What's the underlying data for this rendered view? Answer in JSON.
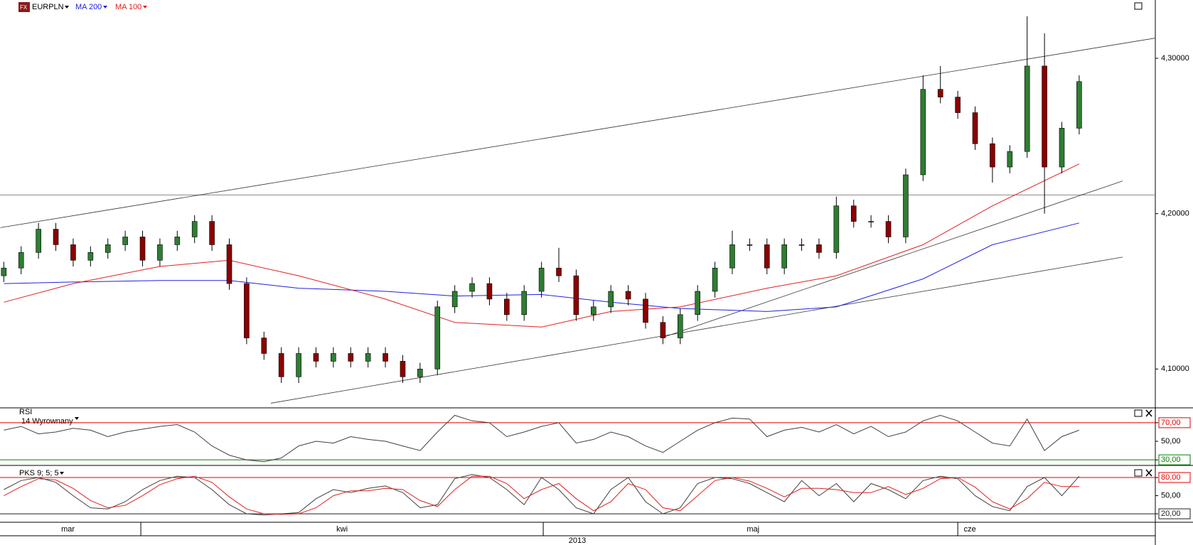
{
  "chart_data": [
    {
      "type": "candlestick",
      "title": "EURPLN",
      "up_color": "#2e7d32",
      "down_color": "#8b0000",
      "open": [
        4.16,
        4.165,
        4.175,
        4.19,
        4.18,
        4.17,
        4.175,
        4.18,
        4.185,
        4.17,
        4.18,
        4.185,
        4.195,
        4.18,
        4.155,
        4.12,
        4.11,
        4.095,
        4.11,
        4.105,
        4.11,
        4.105,
        4.11,
        4.105,
        4.095,
        4.1,
        4.14,
        4.15,
        4.155,
        4.145,
        4.135,
        4.15,
        4.165,
        4.16,
        4.135,
        4.14,
        4.15,
        4.145,
        4.13,
        4.12,
        4.135,
        4.15,
        4.165,
        4.18,
        4.18,
        4.165,
        4.18,
        4.18,
        4.175,
        4.205,
        4.195,
        4.195,
        4.185,
        4.225,
        4.28,
        4.275,
        4.265,
        4.245,
        4.23,
        4.24,
        4.295,
        4.23,
        4.255
      ],
      "high": [
        4.169,
        4.179,
        4.194,
        4.194,
        4.184,
        4.179,
        4.184,
        4.189,
        4.189,
        4.184,
        4.189,
        4.199,
        4.199,
        4.184,
        4.159,
        4.124,
        4.114,
        4.114,
        4.114,
        4.114,
        4.114,
        4.114,
        4.114,
        4.109,
        4.104,
        4.144,
        4.154,
        4.159,
        4.159,
        4.149,
        4.154,
        4.169,
        4.178,
        4.164,
        4.144,
        4.154,
        4.154,
        4.149,
        4.134,
        4.139,
        4.154,
        4.169,
        4.189,
        4.184,
        4.184,
        4.184,
        4.184,
        4.184,
        4.211,
        4.209,
        4.199,
        4.199,
        4.229,
        4.289,
        4.295,
        4.279,
        4.269,
        4.249,
        4.244,
        4.327,
        4.316,
        4.259,
        4.289
      ],
      "low": [
        4.156,
        4.161,
        4.171,
        4.176,
        4.166,
        4.166,
        4.171,
        4.176,
        4.166,
        4.166,
        4.176,
        4.181,
        4.176,
        4.151,
        4.116,
        4.106,
        4.091,
        4.091,
        4.101,
        4.101,
        4.101,
        4.101,
        4.101,
        4.091,
        4.091,
        4.096,
        4.136,
        4.146,
        4.141,
        4.131,
        4.131,
        4.146,
        4.156,
        4.131,
        4.131,
        4.136,
        4.141,
        4.126,
        4.116,
        4.116,
        4.131,
        4.146,
        4.161,
        4.176,
        4.161,
        4.161,
        4.176,
        4.171,
        4.171,
        4.191,
        4.191,
        4.181,
        4.181,
        4.221,
        4.271,
        4.261,
        4.241,
        4.22,
        4.226,
        4.236,
        4.2,
        4.226,
        4.251
      ],
      "close": [
        4.165,
        4.175,
        4.19,
        4.18,
        4.17,
        4.175,
        4.18,
        4.185,
        4.17,
        4.18,
        4.185,
        4.195,
        4.18,
        4.155,
        4.12,
        4.11,
        4.095,
        4.11,
        4.105,
        4.11,
        4.105,
        4.11,
        4.105,
        4.095,
        4.1,
        4.14,
        4.15,
        4.155,
        4.145,
        4.135,
        4.15,
        4.165,
        4.16,
        4.135,
        4.14,
        4.15,
        4.145,
        4.13,
        4.12,
        4.135,
        4.15,
        4.165,
        4.18,
        4.18,
        4.165,
        4.18,
        4.18,
        4.175,
        4.205,
        4.195,
        4.195,
        4.185,
        4.225,
        4.28,
        4.275,
        4.265,
        4.245,
        4.23,
        4.24,
        4.295,
        4.23,
        4.255,
        4.285
      ],
      "series": [
        {
          "name": "MA 200",
          "color": "#2020e0",
          "x": [
            0,
            4,
            9,
            13,
            17,
            22,
            26,
            31,
            35,
            39,
            44,
            48,
            53,
            57,
            62
          ],
          "values": [
            4.155,
            4.156,
            4.157,
            4.157,
            4.152,
            4.15,
            4.147,
            4.148,
            4.143,
            4.139,
            4.137,
            4.14,
            4.158,
            4.18,
            4.194
          ]
        },
        {
          "name": "MA 100",
          "color": "#e02020",
          "x": [
            0,
            4,
            9,
            13,
            17,
            22,
            26,
            31,
            35,
            39,
            44,
            48,
            53,
            57,
            62
          ],
          "values": [
            4.143,
            4.155,
            4.166,
            4.17,
            4.16,
            4.145,
            4.13,
            4.127,
            4.137,
            4.14,
            4.152,
            4.16,
            4.18,
            4.205,
            4.232
          ]
        }
      ],
      "trend_lines": [
        {
          "x": [
            -0.2,
            66.4
          ],
          "y": [
            4.191,
            4.313
          ]
        },
        {
          "x": [
            15.4,
            64.5
          ],
          "y": [
            4.078,
            4.172
          ]
        },
        {
          "x": [
            37.9,
            64.5
          ],
          "y": [
            4.12,
            4.221
          ]
        }
      ],
      "hline": 4.212,
      "ylim": [
        4.075,
        4.3375
      ],
      "yticks": [
        {
          "value": 4.1,
          "label": "4,10000"
        },
        {
          "value": 4.2,
          "label": "4,20000"
        },
        {
          "value": 4.3,
          "label": "4,30000"
        }
      ]
    },
    {
      "type": "line",
      "title": "RSI",
      "subtitle": "14 Wyrownany",
      "series": [
        {
          "color": "#404040",
          "values": [
            62,
            66,
            58,
            60,
            64,
            62,
            55,
            60,
            63,
            66,
            68,
            60,
            45,
            35,
            30,
            28,
            32,
            45,
            50,
            48,
            55,
            52,
            50,
            45,
            40,
            60,
            78,
            72,
            70,
            55,
            60,
            66,
            70,
            48,
            52,
            60,
            55,
            45,
            38,
            50,
            62,
            70,
            75,
            74,
            55,
            62,
            65,
            60,
            68,
            58,
            66,
            55,
            60,
            72,
            78,
            72,
            60,
            48,
            45,
            74,
            40,
            55,
            62
          ]
        }
      ],
      "levels": [
        {
          "value": 70,
          "color": "#e00000"
        },
        {
          "value": 30,
          "color": "#008000"
        }
      ],
      "ylim": [
        24,
        86
      ],
      "yticks": [
        {
          "value": 30,
          "label": "30,00"
        },
        {
          "value": 50,
          "label": "50,00"
        },
        {
          "value": 70,
          "label": "70,00"
        }
      ]
    },
    {
      "type": "line",
      "title": "PKS 9; 5; 5",
      "series": [
        {
          "color": "#404040",
          "values": [
            60,
            75,
            80,
            72,
            50,
            30,
            28,
            40,
            60,
            75,
            82,
            80,
            60,
            35,
            20,
            18,
            20,
            22,
            45,
            60,
            55,
            62,
            66,
            55,
            30,
            35,
            78,
            85,
            80,
            60,
            35,
            80,
            60,
            30,
            20,
            60,
            80,
            40,
            20,
            30,
            70,
            80,
            78,
            70,
            55,
            40,
            75,
            50,
            70,
            40,
            70,
            60,
            45,
            75,
            82,
            78,
            50,
            32,
            25,
            65,
            80,
            50,
            82
          ]
        },
        {
          "color": "#e02020",
          "values": [
            50,
            65,
            78,
            76,
            62,
            42,
            30,
            34,
            50,
            68,
            78,
            82,
            72,
            48,
            28,
            20,
            19,
            20,
            30,
            50,
            58,
            58,
            62,
            60,
            42,
            32,
            60,
            82,
            82,
            70,
            45,
            60,
            70,
            45,
            25,
            40,
            70,
            60,
            30,
            25,
            50,
            75,
            80,
            74,
            62,
            48,
            62,
            62,
            60,
            55,
            55,
            65,
            52,
            62,
            78,
            80,
            64,
            40,
            28,
            45,
            72,
            65,
            65
          ]
        }
      ],
      "levels": [
        {
          "value": 80,
          "color": "#e00000"
        },
        {
          "value": 20,
          "color": "#202020"
        }
      ],
      "ylim": [
        6,
        100
      ],
      "yticks": [
        {
          "value": 20,
          "label": "20,00"
        },
        {
          "value": 50,
          "label": "50,00"
        },
        {
          "value": 80,
          "label": "80,00"
        }
      ]
    }
  ],
  "time_axis": {
    "bounds": [
      7.9,
      31.1,
      55
    ],
    "months": [
      {
        "label": "mar",
        "x": 3.7
      },
      {
        "label": "kwi",
        "x": 19.5
      },
      {
        "label": "maj",
        "x": 43.2
      },
      {
        "label": "cze",
        "x": 55.7
      }
    ],
    "year": "2013"
  }
}
